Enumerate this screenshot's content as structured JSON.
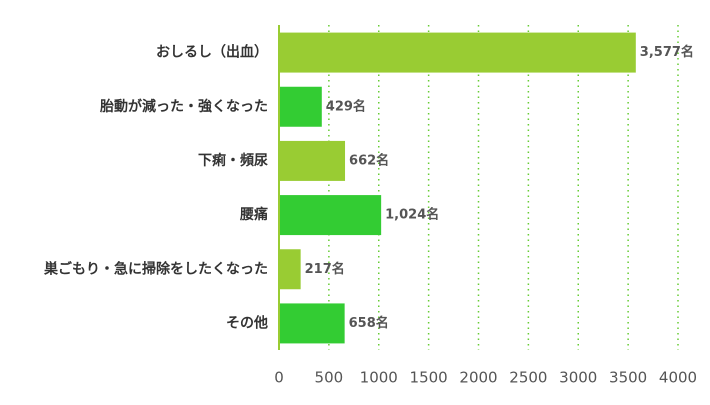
{
  "chart_data": {
    "type": "hbar",
    "categories": [
      "おしるし（出血）",
      "胎動が減った・強くなった",
      "下痢・頻尿",
      "腰痛",
      "巣ごもり・急に掃除をしたくなった",
      "その他"
    ],
    "values": [
      3577,
      429,
      662,
      1024,
      217,
      658
    ],
    "value_labels": [
      "3,577名",
      "429名",
      "662名",
      "1,024名",
      "217名",
      "658名"
    ],
    "colors": [
      "#99cc33",
      "#33cc33",
      "#99cc33",
      "#33cc33",
      "#99cc33",
      "#33cc33"
    ],
    "xlim": [
      0,
      4000
    ],
    "xticks": [
      0,
      500,
      1000,
      1500,
      2000,
      2500,
      3000,
      3500,
      4000
    ],
    "grid": true,
    "grid_color": "#66cc33"
  }
}
